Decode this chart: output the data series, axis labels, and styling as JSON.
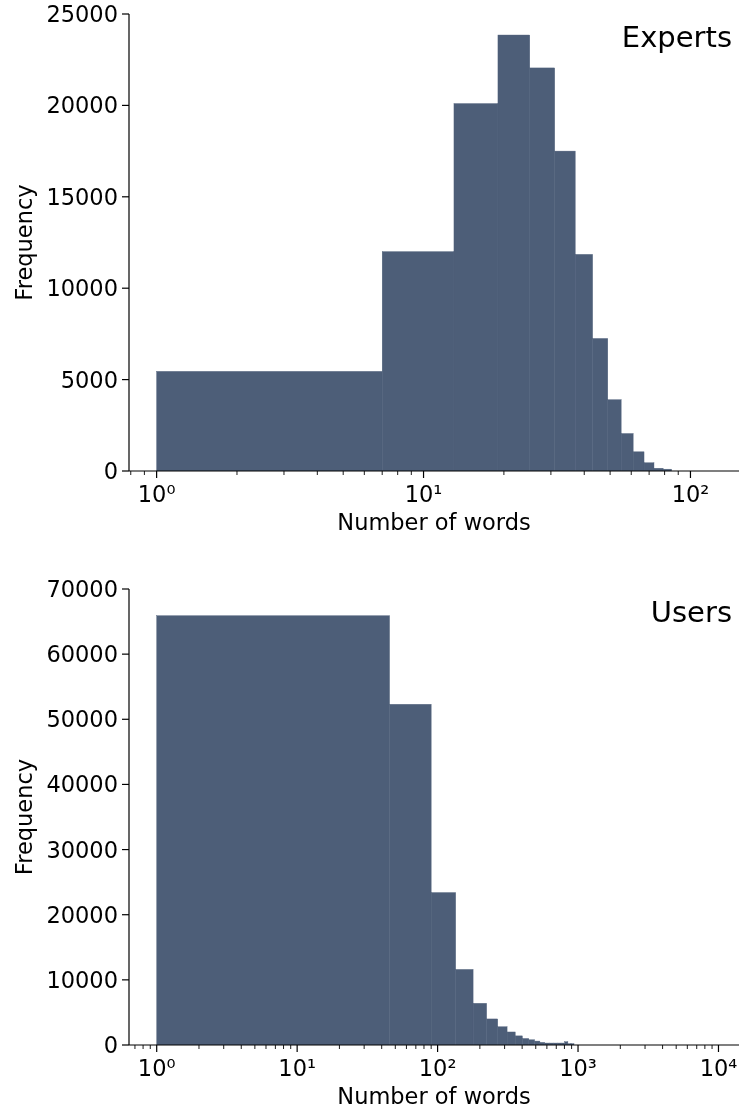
{
  "chart_data": [
    {
      "type": "histogram",
      "bins": [
        1,
        7,
        13,
        19,
        25,
        31,
        37,
        43,
        49,
        55,
        61,
        67,
        73,
        79,
        85
      ],
      "values": [
        5450,
        12000,
        20100,
        23850,
        22050,
        17500,
        11850,
        7250,
        3900,
        2050,
        1050,
        450,
        150,
        100
      ],
      "color": "#4d5e78",
      "xlabel": "Number of words",
      "ylabel": "Frequency",
      "log": "x",
      "xlim": [
        0.788,
        152
      ],
      "xticks": [
        {
          "value": 0.8,
          "label": null
        },
        {
          "value": 0.9,
          "label": null
        },
        {
          "value": 1,
          "label": "10⁰"
        },
        {
          "value": 2,
          "label": null
        },
        {
          "value": 3,
          "label": null
        },
        {
          "value": 4,
          "label": null
        },
        {
          "value": 5,
          "label": null
        },
        {
          "value": 6,
          "label": null
        },
        {
          "value": 7,
          "label": null
        },
        {
          "value": 8,
          "label": null
        },
        {
          "value": 9,
          "label": null
        },
        {
          "value": 10,
          "label": "10¹"
        },
        {
          "value": 20,
          "label": null
        },
        {
          "value": 30,
          "label": null
        },
        {
          "value": 40,
          "label": null
        },
        {
          "value": 50,
          "label": null
        },
        {
          "value": 60,
          "label": null
        },
        {
          "value": 70,
          "label": null
        },
        {
          "value": 80,
          "label": null
        },
        {
          "value": 90,
          "label": null
        },
        {
          "value": 100,
          "label": "10²"
        }
      ],
      "ylim": [
        0,
        25000
      ],
      "yticks": [
        0,
        5000,
        10000,
        15000,
        20000,
        25000
      ],
      "annotations": [
        "Experts"
      ]
    },
    {
      "type": "histogram",
      "bins": [
        1,
        45.5,
        90,
        134.5,
        179,
        223.5,
        268,
        312.5,
        357,
        401.5,
        446,
        490.5,
        535,
        579.5,
        624,
        668.5,
        713,
        757.5,
        802,
        846.5,
        891,
        935.5
      ],
      "values": [
        65900,
        52300,
        23400,
        11600,
        6400,
        4000,
        2800,
        2000,
        1400,
        1000,
        800,
        600,
        400,
        300,
        300,
        300,
        300,
        300,
        500,
        200,
        200
      ],
      "color": "#4d5e78",
      "xlabel": "Number of words",
      "ylabel": "Frequency",
      "log": "x",
      "xlim": [
        0.635,
        14000
      ],
      "xticks": [
        {
          "value": 0.7,
          "label": null
        },
        {
          "value": 0.8,
          "label": null
        },
        {
          "value": 0.9,
          "label": null
        },
        {
          "value": 1,
          "label": "10⁰"
        },
        {
          "value": 2,
          "label": null
        },
        {
          "value": 3,
          "label": null
        },
        {
          "value": 4,
          "label": null
        },
        {
          "value": 5,
          "label": null
        },
        {
          "value": 6,
          "label": null
        },
        {
          "value": 7,
          "label": null
        },
        {
          "value": 8,
          "label": null
        },
        {
          "value": 9,
          "label": null
        },
        {
          "value": 10,
          "label": "10¹"
        },
        {
          "value": 20,
          "label": null
        },
        {
          "value": 30,
          "label": null
        },
        {
          "value": 40,
          "label": null
        },
        {
          "value": 50,
          "label": null
        },
        {
          "value": 60,
          "label": null
        },
        {
          "value": 70,
          "label": null
        },
        {
          "value": 80,
          "label": null
        },
        {
          "value": 90,
          "label": null
        },
        {
          "value": 100,
          "label": "10²"
        },
        {
          "value": 200,
          "label": null
        },
        {
          "value": 300,
          "label": null
        },
        {
          "value": 400,
          "label": null
        },
        {
          "value": 500,
          "label": null
        },
        {
          "value": 600,
          "label": null
        },
        {
          "value": 700,
          "label": null
        },
        {
          "value": 800,
          "label": null
        },
        {
          "value": 900,
          "label": null
        },
        {
          "value": 1000,
          "label": "10³"
        },
        {
          "value": 2000,
          "label": null
        },
        {
          "value": 3000,
          "label": null
        },
        {
          "value": 4000,
          "label": null
        },
        {
          "value": 5000,
          "label": null
        },
        {
          "value": 6000,
          "label": null
        },
        {
          "value": 7000,
          "label": null
        },
        {
          "value": 8000,
          "label": null
        },
        {
          "value": 9000,
          "label": null
        },
        {
          "value": 10000,
          "label": "10⁴"
        }
      ],
      "ylim": [
        0,
        70000
      ],
      "yticks": [
        0,
        10000,
        20000,
        30000,
        40000,
        50000,
        60000,
        70000
      ],
      "annotations": [
        "Users"
      ]
    }
  ]
}
